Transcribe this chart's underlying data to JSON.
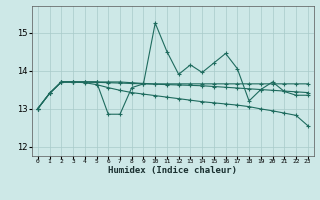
{
  "xlabel": "Humidex (Indice chaleur)",
  "bg_color": "#cde8e7",
  "grid_color": "#a8cbca",
  "line_color": "#1e6b5e",
  "xlim": [
    -0.5,
    23.5
  ],
  "ylim": [
    11.75,
    15.7
  ],
  "yticks": [
    12,
    13,
    14,
    15
  ],
  "xticks": [
    0,
    1,
    2,
    3,
    4,
    5,
    6,
    7,
    8,
    9,
    10,
    11,
    12,
    13,
    14,
    15,
    16,
    17,
    18,
    19,
    20,
    21,
    22,
    23
  ],
  "series": [
    [
      13.0,
      13.4,
      13.7,
      13.7,
      13.7,
      13.7,
      12.85,
      12.85,
      13.55,
      13.65,
      15.25,
      14.5,
      13.9,
      14.15,
      13.95,
      14.2,
      14.45,
      14.05,
      13.2,
      13.5,
      13.7,
      13.45,
      13.35,
      13.35
    ],
    [
      13.0,
      13.4,
      13.7,
      13.7,
      13.7,
      13.7,
      13.7,
      13.7,
      13.68,
      13.66,
      13.65,
      13.65,
      13.65,
      13.65,
      13.65,
      13.65,
      13.65,
      13.65,
      13.65,
      13.65,
      13.65,
      13.65,
      13.65,
      13.65
    ],
    [
      13.0,
      13.4,
      13.7,
      13.7,
      13.68,
      13.63,
      13.55,
      13.48,
      13.42,
      13.38,
      13.34,
      13.3,
      13.26,
      13.22,
      13.18,
      13.15,
      13.12,
      13.09,
      13.05,
      12.99,
      12.94,
      12.88,
      12.82,
      12.55
    ],
    [
      13.0,
      13.4,
      13.7,
      13.7,
      13.7,
      13.69,
      13.68,
      13.67,
      13.66,
      13.65,
      13.64,
      13.63,
      13.62,
      13.61,
      13.6,
      13.58,
      13.56,
      13.54,
      13.52,
      13.5,
      13.48,
      13.46,
      13.44,
      13.42
    ]
  ]
}
